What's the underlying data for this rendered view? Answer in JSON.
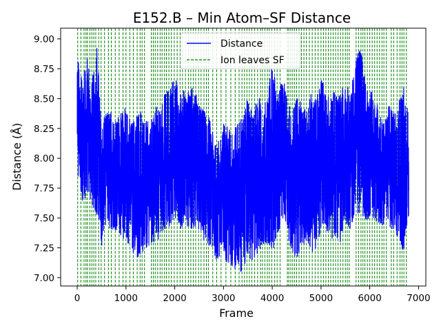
{
  "chart_data": {
    "type": "line",
    "title": "E152.B – Min Atom–SF Distance",
    "xlabel": "Frame",
    "ylabel": "Distance (Å)",
    "xlim": [
      -340,
      7150
    ],
    "ylim": [
      6.93,
      9.09
    ],
    "x_ticks": [
      0,
      1000,
      2000,
      3000,
      4000,
      5000,
      6000,
      7000
    ],
    "y_ticks": [
      7.0,
      7.25,
      7.5,
      7.75,
      8.0,
      8.25,
      8.5,
      8.75,
      9.0
    ],
    "legend": {
      "placement": "top-center",
      "entries": [
        "Distance",
        "Ion leaves SF"
      ]
    },
    "colors": {
      "distance": "#0000ff",
      "ion_events": "#008000"
    },
    "series": [
      {
        "name": "Distance",
        "frames": 6800,
        "envelope_x": [
          0,
          100,
          200,
          300,
          400,
          500,
          600,
          700,
          800,
          900,
          1000,
          1100,
          1200,
          1300,
          1400,
          1500,
          1600,
          1700,
          1800,
          1900,
          2000,
          2100,
          2200,
          2300,
          2400,
          2500,
          2600,
          2700,
          2800,
          2900,
          3000,
          3100,
          3200,
          3300,
          3400,
          3500,
          3600,
          3700,
          3800,
          3900,
          4000,
          4100,
          4200,
          4300,
          4400,
          4500,
          4600,
          4700,
          4800,
          4900,
          5000,
          5100,
          5200,
          5300,
          5400,
          5500,
          5600,
          5700,
          5800,
          5900,
          6000,
          6100,
          6200,
          6300,
          6400,
          6500,
          6600,
          6700,
          6790
        ],
        "envelope_min": [
          7.85,
          7.62,
          7.68,
          7.6,
          7.52,
          7.25,
          7.45,
          7.38,
          7.4,
          7.35,
          7.3,
          7.25,
          7.15,
          7.2,
          7.2,
          7.3,
          7.28,
          7.35,
          7.4,
          7.42,
          7.5,
          7.4,
          7.45,
          7.42,
          7.38,
          7.4,
          7.3,
          7.25,
          7.2,
          7.1,
          7.15,
          7.12,
          7.05,
          7.08,
          7.02,
          7.2,
          7.1,
          7.2,
          7.25,
          7.3,
          7.2,
          7.35,
          7.45,
          7.4,
          7.2,
          7.15,
          7.25,
          7.3,
          7.2,
          7.25,
          7.35,
          7.4,
          7.3,
          7.35,
          7.3,
          7.45,
          7.4,
          7.5,
          7.55,
          7.45,
          7.5,
          7.5,
          7.4,
          7.45,
          7.4,
          7.4,
          7.3,
          7.2,
          7.5
        ],
        "envelope_max": [
          8.85,
          8.7,
          8.85,
          8.65,
          8.98,
          8.3,
          8.38,
          8.4,
          8.35,
          8.38,
          8.45,
          8.3,
          8.35,
          8.4,
          8.35,
          8.3,
          8.45,
          8.4,
          8.55,
          8.6,
          8.72,
          8.55,
          8.58,
          8.55,
          8.62,
          8.45,
          8.4,
          8.35,
          8.2,
          8.15,
          8.3,
          8.25,
          8.25,
          8.3,
          8.35,
          8.52,
          8.35,
          8.55,
          8.45,
          8.5,
          8.82,
          8.55,
          8.65,
          8.6,
          8.35,
          8.55,
          8.45,
          8.4,
          8.55,
          8.5,
          8.75,
          8.55,
          8.5,
          8.6,
          8.55,
          8.7,
          8.55,
          8.8,
          8.95,
          8.7,
          8.6,
          8.5,
          8.4,
          8.35,
          8.45,
          8.4,
          8.5,
          8.6,
          8.45
        ]
      }
    ],
    "ion_leave_frames": [
      10,
      75,
      140,
      180,
      210,
      260,
      300,
      340,
      380,
      440,
      490,
      560,
      640,
      700,
      780,
      860,
      940,
      1000,
      1080,
      1150,
      1230,
      1290,
      1330,
      1380,
      1520,
      1560,
      1600,
      1650,
      1700,
      1740,
      1790,
      1830,
      1880,
      1930,
      1990,
      2050,
      2110,
      2160,
      2220,
      2280,
      2330,
      2380,
      2430,
      2490,
      2540,
      2600,
      2650,
      2690,
      2780,
      2860,
      2950,
      3050,
      3150,
      3240,
      3320,
      3380,
      3430,
      3480,
      3530,
      3580,
      3640,
      3700,
      3760,
      3800,
      3850,
      3900,
      3940,
      3990,
      4050,
      4100,
      4160,
      4310,
      4340,
      4380,
      4420,
      4460,
      4500,
      4550,
      4600,
      4650,
      4700,
      4760,
      4820,
      4880,
      4940,
      5000,
      5050,
      5100,
      5150,
      5200,
      5250,
      5300,
      5350,
      5400,
      5450,
      5500,
      5540,
      5580,
      5720,
      5770,
      5820,
      5860,
      5900,
      5950,
      6000,
      6050,
      6100,
      6150,
      6200,
      6250,
      6290,
      6340,
      6440,
      6490,
      6560,
      6620,
      6660,
      6700,
      6750
    ]
  }
}
